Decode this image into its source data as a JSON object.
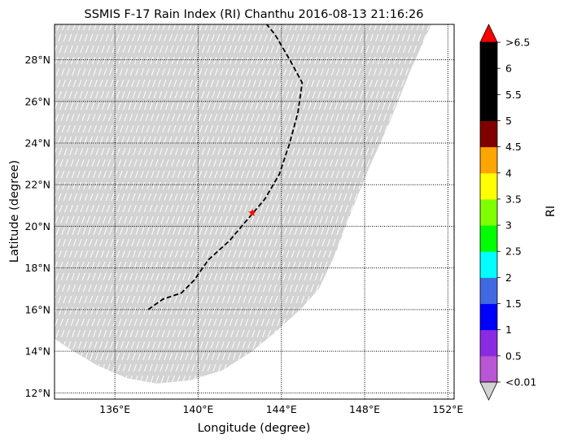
{
  "chart_data": {
    "type": "map",
    "title": "SSMIS F-17 Rain Index (RI) Chanthu 2016-08-13 21:16:26",
    "xlabel": "Longitude (degree)",
    "ylabel": "Latitude (degree)",
    "xlim": [
      133.1,
      152.3
    ],
    "ylim": [
      11.7,
      29.7
    ],
    "xticks": [
      {
        "value": 136,
        "label": "136°E"
      },
      {
        "value": 140,
        "label": "140°E"
      },
      {
        "value": 144,
        "label": "144°E"
      },
      {
        "value": 148,
        "label": "148°E"
      },
      {
        "value": 152,
        "label": "152°E"
      }
    ],
    "yticks": [
      {
        "value": 12,
        "label": "12°N"
      },
      {
        "value": 14,
        "label": "14°N"
      },
      {
        "value": 16,
        "label": "16°N"
      },
      {
        "value": 18,
        "label": "18°N"
      },
      {
        "value": 20,
        "label": "20°N"
      },
      {
        "value": 22,
        "label": "22°N"
      },
      {
        "value": 24,
        "label": "24°N"
      },
      {
        "value": 26,
        "label": "26°N"
      },
      {
        "value": 28,
        "label": "28°N"
      }
    ],
    "grid": "dotted",
    "swath": {
      "color": "#d3d3d3",
      "description_value": "<0.01",
      "outline": [
        [
          133.1,
          29.7
        ],
        [
          151.2,
          29.7
        ],
        [
          150.2,
          27.5
        ],
        [
          149.2,
          25.0
        ],
        [
          148.2,
          22.8
        ],
        [
          147.4,
          20.8
        ],
        [
          146.6,
          18.7
        ],
        [
          145.8,
          17.0
        ],
        [
          145.0,
          16.1
        ],
        [
          143.8,
          15.0
        ],
        [
          142.6,
          14.0
        ],
        [
          141.2,
          13.1
        ],
        [
          139.6,
          12.6
        ],
        [
          138.0,
          12.45
        ],
        [
          136.6,
          12.7
        ],
        [
          135.2,
          13.3
        ],
        [
          134.0,
          14.0
        ],
        [
          133.1,
          14.6
        ]
      ]
    },
    "storm_track": {
      "style": "dashed",
      "color": "#000000",
      "points": [
        [
          137.6,
          16.0
        ],
        [
          138.3,
          16.5
        ],
        [
          139.2,
          16.8
        ],
        [
          139.8,
          17.4
        ],
        [
          140.5,
          18.4
        ],
        [
          141.5,
          19.3
        ],
        [
          142.6,
          20.6
        ],
        [
          143.2,
          21.3
        ],
        [
          143.9,
          22.5
        ],
        [
          144.4,
          24.0
        ],
        [
          144.8,
          25.5
        ],
        [
          145.0,
          26.9
        ],
        [
          144.4,
          28.0
        ],
        [
          143.7,
          29.2
        ],
        [
          143.3,
          29.7
        ]
      ]
    },
    "storm_center": {
      "lon": 142.6,
      "lat": 20.65,
      "marker": "star",
      "color": "#ff0000"
    },
    "colorbar": {
      "label": "RI",
      "tick_labels": [
        "<0.01",
        "0.5",
        "1",
        "1.5",
        "2",
        "2.5",
        "3",
        "3.5",
        "4",
        "4.5",
        "5",
        "5.5",
        "6",
        ">6.5"
      ],
      "segments": [
        {
          "from": 0.01,
          "to": 0.5,
          "color": "#ba55d3"
        },
        {
          "from": 0.5,
          "to": 1,
          "color": "#8a2be2"
        },
        {
          "from": 1,
          "to": 1.5,
          "color": "#0000ff"
        },
        {
          "from": 1.5,
          "to": 2,
          "color": "#4169e1"
        },
        {
          "from": 2,
          "to": 2.5,
          "color": "#00ffff"
        },
        {
          "from": 2.5,
          "to": 3,
          "color": "#00ff00"
        },
        {
          "from": 3,
          "to": 3.5,
          "color": "#7fff00"
        },
        {
          "from": 3.5,
          "to": 4,
          "color": "#ffff00"
        },
        {
          "from": 4,
          "to": 4.5,
          "color": "#ffa500"
        },
        {
          "from": 4.5,
          "to": 5,
          "color": "#800000"
        },
        {
          "from": 5,
          "to": 5.5,
          "color": "#000000"
        },
        {
          "from": 5.5,
          "to": 6,
          "color": "#000000"
        },
        {
          "from": 6,
          "to": 6.5,
          "color": "#000000"
        }
      ],
      "under_color": "#d3d3d3",
      "over_color": "#ff0000"
    }
  }
}
